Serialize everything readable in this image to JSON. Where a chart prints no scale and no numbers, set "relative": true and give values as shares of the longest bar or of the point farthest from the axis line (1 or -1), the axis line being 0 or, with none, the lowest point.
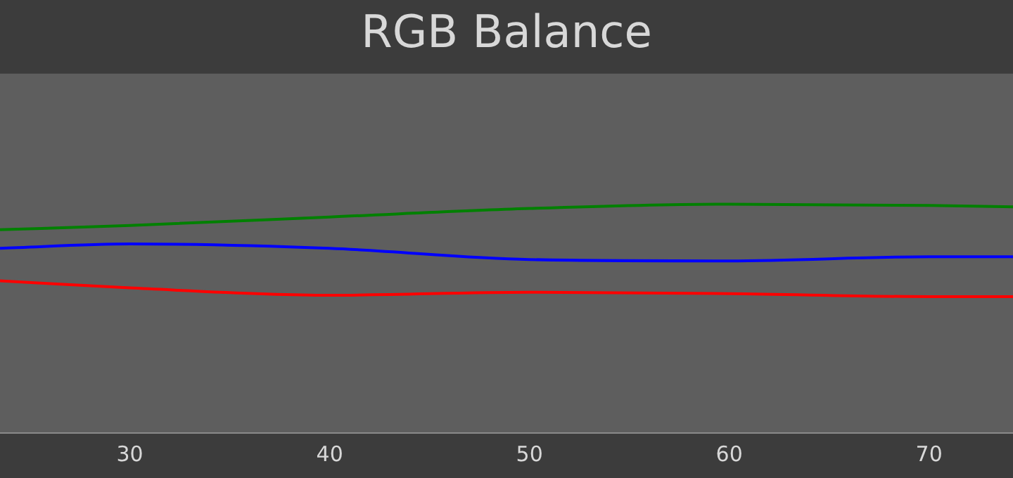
{
  "chart_data": {
    "type": "line",
    "title": "RGB Balance",
    "relative": true,
    "x": [
      23.5,
      30,
      40,
      50,
      60,
      70,
      74.2
    ],
    "xlim": [
      23.5,
      74.2
    ],
    "xticks": [
      30,
      40,
      50,
      60,
      70
    ],
    "legend": false,
    "series": [
      {
        "color": "#ff0000",
        "values": [
          0.665,
          0.634,
          0.602,
          0.615,
          0.609,
          0.596,
          0.596
        ]
      },
      {
        "color": "#008000",
        "values": [
          0.888,
          0.907,
          0.944,
          0.981,
          1.0,
          0.994,
          0.988
        ]
      },
      {
        "color": "#0000ff",
        "values": [
          0.807,
          0.826,
          0.807,
          0.758,
          0.752,
          0.77,
          0.77
        ]
      }
    ]
  }
}
